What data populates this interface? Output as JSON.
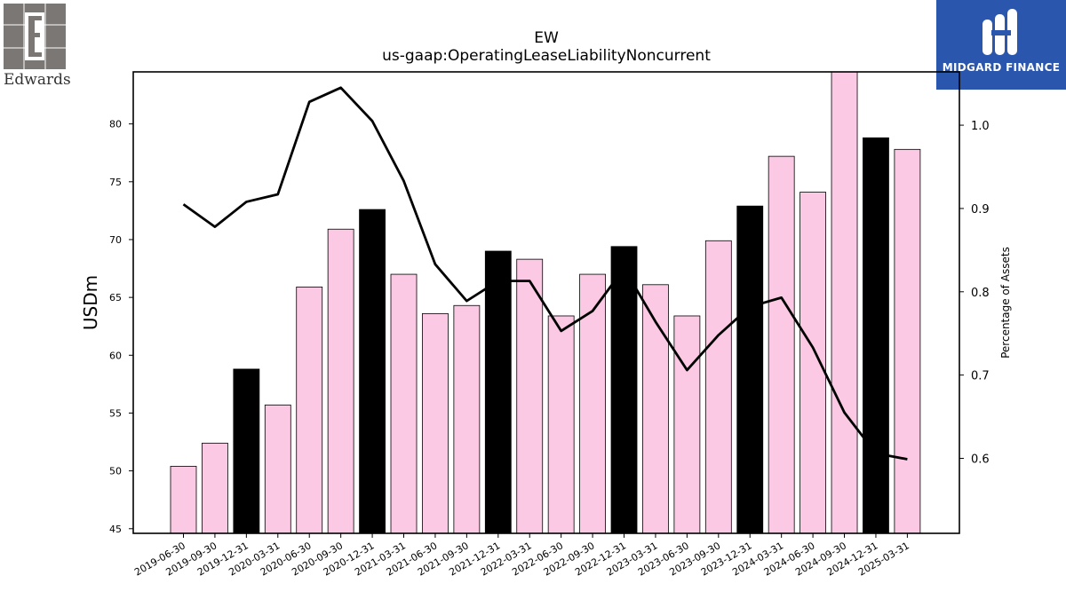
{
  "logos": {
    "left": {
      "name": "Edwards"
    },
    "right": {
      "name": "MIDGARD FINANCE"
    }
  },
  "chart_data": {
    "type": "bar",
    "title": "EW",
    "subtitle": "us-gaap:OperatingLeaseLiabilityNoncurrent",
    "ylabel": "USDm",
    "y2label": "Percentage of Assets",
    "ylim": [
      44.6,
      84.5
    ],
    "y2lim": [
      0.51,
      1.064
    ],
    "yticks": [
      45,
      50,
      55,
      60,
      65,
      70,
      75,
      80
    ],
    "y2ticks": [
      0.6,
      0.7,
      0.8,
      0.9,
      1.0
    ],
    "categories": [
      "2019-06-30",
      "2019-09-30",
      "2019-12-31",
      "2020-03-31",
      "2020-06-30",
      "2020-09-30",
      "2020-12-31",
      "2021-03-31",
      "2021-06-30",
      "2021-09-30",
      "2021-12-31",
      "2022-03-31",
      "2022-06-30",
      "2022-09-30",
      "2022-12-31",
      "2023-03-31",
      "2023-06-30",
      "2023-09-30",
      "2023-12-31",
      "2024-03-31",
      "2024-06-30",
      "2024-09-30",
      "2024-12-31",
      "2025-03-31"
    ],
    "series": [
      {
        "kind": "bar",
        "values": [
          50.4,
          52.4,
          58.8,
          55.7,
          65.9,
          70.9,
          72.6,
          67.0,
          63.6,
          64.3,
          69.0,
          68.3,
          63.4,
          67.0,
          69.4,
          66.1,
          63.4,
          69.9,
          72.9,
          77.2,
          74.1,
          84.5,
          78.8,
          77.8
        ]
      },
      {
        "kind": "line",
        "axis": "right",
        "values": [
          0.905,
          0.878,
          0.908,
          0.917,
          1.028,
          1.045,
          1.005,
          0.933,
          0.833,
          0.789,
          0.813,
          0.813,
          0.753,
          0.777,
          0.828,
          0.764,
          0.706,
          0.748,
          0.782,
          0.793,
          0.733,
          0.655,
          0.606,
          0.599
        ]
      }
    ],
    "bar_colors": {
      "regular": "#fbc9e4",
      "year_end": "#000000"
    },
    "year_end_suffix": "-12-31",
    "line_color": "#000000",
    "grid": false,
    "legend": "none"
  }
}
